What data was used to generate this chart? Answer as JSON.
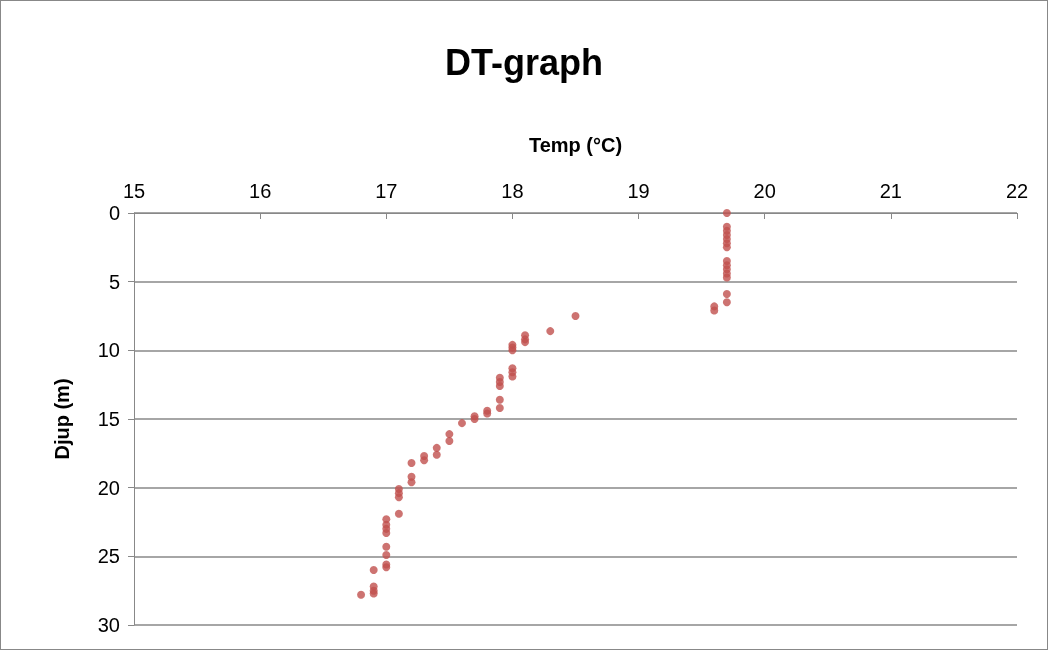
{
  "chart_data": {
    "type": "scatter",
    "title": "DT-graph",
    "xlabel": "Temp (°C)",
    "ylabel": "Djup (m)",
    "x": [
      19.7,
      19.7,
      19.7,
      19.7,
      19.7,
      19.7,
      19.7,
      19.7,
      19.7,
      19.7,
      19.7,
      19.7,
      19.7,
      19.7,
      19.6,
      19.6,
      18.5,
      18.3,
      18.1,
      18.1,
      18.1,
      18.0,
      18.0,
      18.0,
      18.0,
      18.0,
      18.0,
      17.9,
      17.9,
      17.9,
      17.9,
      17.9,
      17.8,
      17.8,
      17.7,
      17.7,
      17.6,
      17.5,
      17.5,
      17.4,
      17.4,
      17.3,
      17.3,
      17.2,
      17.2,
      17.2,
      17.1,
      17.1,
      17.1,
      17.1,
      17.0,
      17.0,
      17.0,
      17.0,
      17.0,
      17.0,
      17.0,
      17.0,
      16.9,
      16.9,
      16.9,
      16.9,
      16.8
    ],
    "values": [
      0,
      1.0,
      1.3,
      1.6,
      1.9,
      2.2,
      2.5,
      3.5,
      3.8,
      4.1,
      4.4,
      4.7,
      5.9,
      6.5,
      6.8,
      7.1,
      7.5,
      8.6,
      8.9,
      9.2,
      9.4,
      9.6,
      9.8,
      10.0,
      11.3,
      11.6,
      11.9,
      12.0,
      12.3,
      12.6,
      13.6,
      14.2,
      14.4,
      14.6,
      14.8,
      15.0,
      15.3,
      16.1,
      16.6,
      17.1,
      17.6,
      17.7,
      18.0,
      18.2,
      19.2,
      19.6,
      20.1,
      20.4,
      20.7,
      21.9,
      22.3,
      22.7,
      23.0,
      23.3,
      24.3,
      24.9,
      25.6,
      25.8,
      26.0,
      27.2,
      27.5,
      27.7,
      27.8
    ],
    "color": "#c0504d",
    "marker": "circle",
    "xlim": [
      15,
      22
    ],
    "xticks": [
      15,
      16,
      17,
      18,
      19,
      20,
      21,
      22
    ],
    "ylim": [
      30,
      0
    ],
    "yticks": [
      0,
      5,
      10,
      15,
      20,
      25,
      30
    ],
    "grid": "y"
  }
}
